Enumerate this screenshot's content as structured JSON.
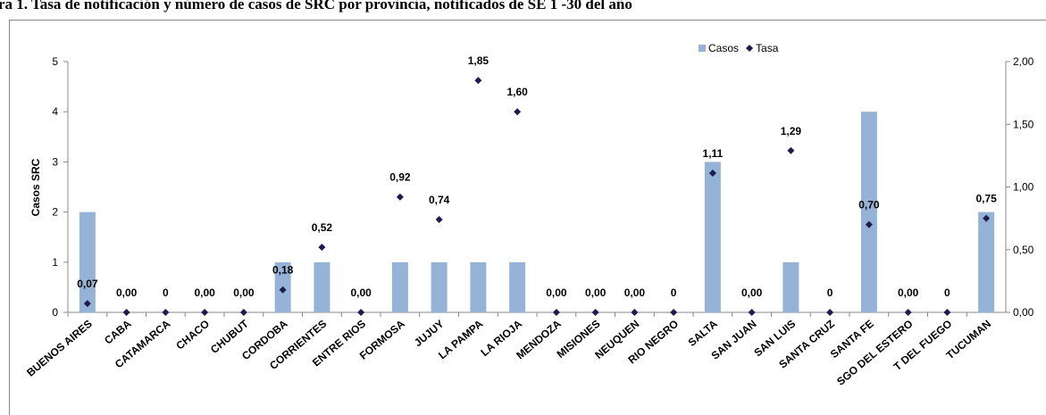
{
  "chart_data": {
    "type": "bar-dot",
    "title": "ra 1. Tasa de notificación y número de casos de SRC por provincia, notificados de SE 1 -30 del año",
    "y_label": "Casos SRC",
    "categories": [
      "BUENOS AIRES",
      "CABA",
      "CATAMARCA",
      "CHACO",
      "CHUBUT",
      "CORDOBA",
      "CORRIENTES",
      "ENTRE RIOS",
      "FORMOSA",
      "JUJUY",
      "LA PAMPA",
      "LA RIOJA",
      "MENDOZA",
      "MISIONES",
      "NEUQUEN",
      "RIO NEGRO",
      "SALTA",
      "SAN JUAN",
      "SAN LUIS",
      "SANTA CRUZ",
      "SANTA FE",
      "SGO DEL ESTERO",
      "T DEL FUEGO",
      "TUCUMAN"
    ],
    "series": [
      {
        "name": "Casos",
        "color": "#95b3d7",
        "values": [
          2,
          0,
          0,
          0,
          0,
          1,
          1,
          0,
          1,
          1,
          1,
          1,
          0,
          0,
          0,
          0,
          3,
          0,
          1,
          0,
          4,
          0,
          0,
          2
        ]
      },
      {
        "name": "Tasa",
        "color": "#1f1a4f",
        "axis": "y2",
        "values": [
          0.07,
          0,
          0,
          0,
          0,
          0.18,
          0.52,
          0,
          0.92,
          0.74,
          1.85,
          1.6,
          0,
          0,
          0,
          0,
          1.11,
          0,
          1.29,
          0,
          0.7,
          0,
          0,
          0.75
        ],
        "value_labels": [
          "0,07",
          "0,00",
          "0",
          "0,00",
          "0,00",
          "0,18",
          "0,52",
          "0,00",
          "0,92",
          "0,74",
          "1,85",
          "1,60",
          "0,00",
          "0,00",
          "0,00",
          "0",
          "1,11",
          "0,00",
          "1,29",
          "0",
          "0,70",
          "0,00",
          "0",
          "0,75"
        ]
      }
    ],
    "ylim": [
      0,
      5
    ],
    "yticks": [
      0,
      1,
      2,
      3,
      4,
      5
    ],
    "y2lim": [
      0,
      2
    ],
    "y2ticks": [
      {
        "value": 0,
        "label": "0,00"
      },
      {
        "value": 0.5,
        "label": "0,50"
      },
      {
        "value": 1,
        "label": "1,00"
      },
      {
        "value": 1.5,
        "label": "1,50"
      },
      {
        "value": 2,
        "label": "2,00"
      }
    ],
    "legend": "top"
  }
}
